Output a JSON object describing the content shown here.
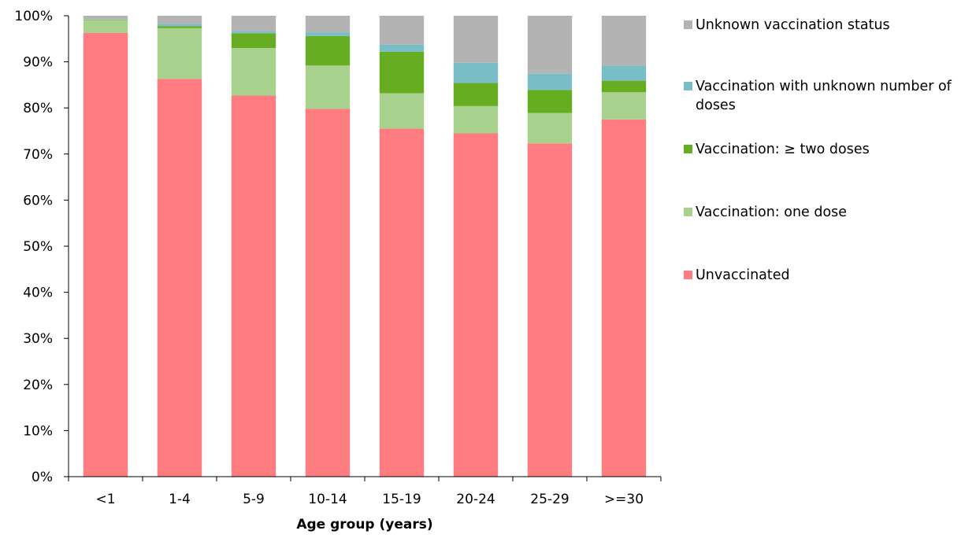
{
  "chart_data": {
    "type": "bar",
    "stacked": true,
    "normalized": true,
    "title": "",
    "xlabel": "Age group (years)",
    "ylabel": "",
    "ylim": [
      0,
      100
    ],
    "yticks": [
      "0%",
      "10%",
      "20%",
      "30%",
      "40%",
      "50%",
      "60%",
      "70%",
      "80%",
      "90%",
      "100%"
    ],
    "categories": [
      "<1",
      "1-4",
      "5-9",
      "10-14",
      "15-19",
      "20-24",
      "25-29",
      ">=30"
    ],
    "series": [
      {
        "name": "Unvaccinated",
        "color": "#ff7c80",
        "values": [
          96.3,
          86.3,
          82.7,
          79.8,
          75.5,
          74.5,
          72.3,
          77.5
        ]
      },
      {
        "name": "Vaccination: one dose",
        "color": "#a9d18e",
        "values": [
          2.7,
          11.0,
          10.3,
          9.4,
          7.7,
          5.9,
          6.6,
          5.9
        ]
      },
      {
        "name": "Vaccination: ≥ two doses",
        "color": "#66ad22",
        "values": [
          0.1,
          0.4,
          3.2,
          6.4,
          9.0,
          5.0,
          5.0,
          2.5
        ]
      },
      {
        "name": "Vaccination with unknown number of doses",
        "color": "#79bec6",
        "values": [
          0.1,
          0.5,
          0.5,
          0.8,
          1.5,
          4.4,
          3.5,
          3.3
        ]
      },
      {
        "name": "Unknown vaccination status",
        "color": "#b3b3b3",
        "values": [
          0.8,
          1.8,
          3.3,
          3.6,
          6.3,
          10.2,
          12.6,
          10.8
        ]
      }
    ],
    "legend": {
      "position": "right",
      "order": [
        "Unknown vaccination status",
        "Vaccination with unknown number of doses",
        "Vaccination: ≥ two doses",
        "Vaccination: one dose",
        "Unvaccinated"
      ]
    },
    "grid": false
  }
}
